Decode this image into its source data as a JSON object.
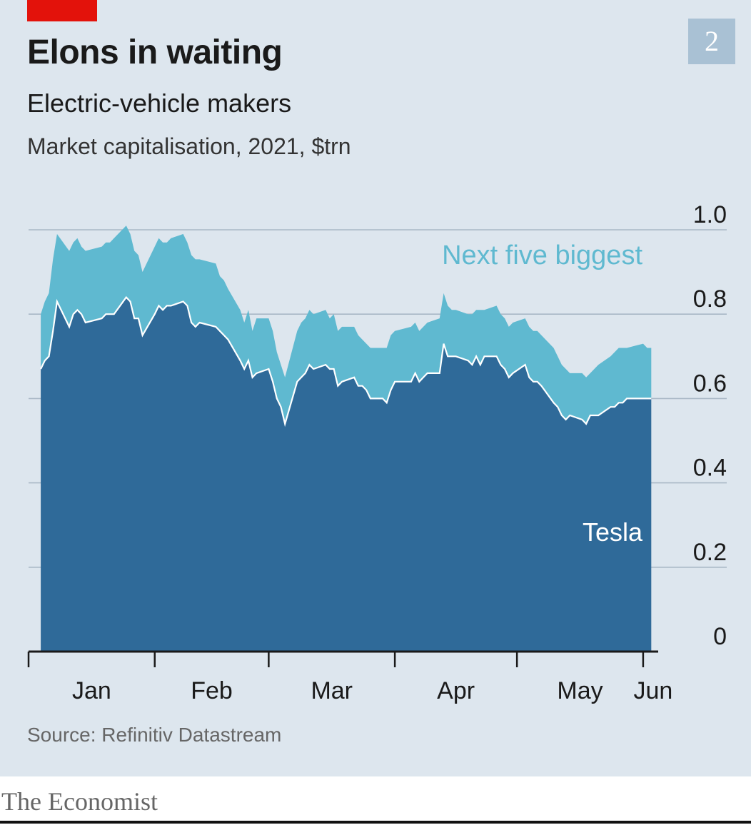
{
  "header": {
    "title": "Elons in waiting",
    "subtitle": "Electric-vehicle makers",
    "unit_note": "Market capitalisation, 2021, $trn",
    "chart_number": "2"
  },
  "footer": {
    "source": "Source: Refinitiv Datastream",
    "brand": "The Economist"
  },
  "colors": {
    "panel_bg": "#dde6ee",
    "tesla": "#2f6a99",
    "next_five": "#5fb9d0",
    "accent_red": "#e3120b"
  },
  "chart_data": {
    "type": "area",
    "stacked": true,
    "title": "Elons in waiting",
    "subtitle": "Electric-vehicle makers",
    "ylabel": "Market capitalisation, 2021, $trn",
    "ylim": [
      0,
      1.0
    ],
    "yticks": [
      "0",
      "0.2",
      "0.4",
      "0.6",
      "0.8",
      "1.0"
    ],
    "ytick_values": [
      0,
      0.2,
      0.4,
      0.6,
      0.8,
      1.0
    ],
    "xlim": [
      "2021-01-01",
      "2021-06-04"
    ],
    "xtick_labels": [
      "Jan",
      "Feb",
      "Mar",
      "Apr",
      "May",
      "Jun"
    ],
    "xtick_dates": [
      "2021-01-01",
      "2021-02-01",
      "2021-03-01",
      "2021-04-01",
      "2021-05-01",
      "2021-06-01"
    ],
    "grid": true,
    "series": [
      {
        "name": "Tesla",
        "color": "#2f6a99",
        "points": [
          [
            "2021-01-04",
            0.67
          ],
          [
            "2021-01-05",
            0.69
          ],
          [
            "2021-01-06",
            0.7
          ],
          [
            "2021-01-07",
            0.76
          ],
          [
            "2021-01-08",
            0.83
          ],
          [
            "2021-01-11",
            0.77
          ],
          [
            "2021-01-12",
            0.8
          ],
          [
            "2021-01-13",
            0.81
          ],
          [
            "2021-01-14",
            0.8
          ],
          [
            "2021-01-15",
            0.78
          ],
          [
            "2021-01-19",
            0.79
          ],
          [
            "2021-01-20",
            0.8
          ],
          [
            "2021-01-21",
            0.8
          ],
          [
            "2021-01-22",
            0.8
          ],
          [
            "2021-01-25",
            0.84
          ],
          [
            "2021-01-26",
            0.83
          ],
          [
            "2021-01-27",
            0.79
          ],
          [
            "2021-01-28",
            0.79
          ],
          [
            "2021-01-29",
            0.75
          ],
          [
            "2021-02-01",
            0.8
          ],
          [
            "2021-02-02",
            0.82
          ],
          [
            "2021-02-03",
            0.81
          ],
          [
            "2021-02-04",
            0.82
          ],
          [
            "2021-02-05",
            0.82
          ],
          [
            "2021-02-08",
            0.83
          ],
          [
            "2021-02-09",
            0.82
          ],
          [
            "2021-02-10",
            0.78
          ],
          [
            "2021-02-11",
            0.77
          ],
          [
            "2021-02-12",
            0.78
          ],
          [
            "2021-02-16",
            0.77
          ],
          [
            "2021-02-17",
            0.76
          ],
          [
            "2021-02-18",
            0.75
          ],
          [
            "2021-02-19",
            0.74
          ],
          [
            "2021-02-22",
            0.69
          ],
          [
            "2021-02-23",
            0.67
          ],
          [
            "2021-02-24",
            0.69
          ],
          [
            "2021-02-25",
            0.65
          ],
          [
            "2021-02-26",
            0.66
          ],
          [
            "2021-03-01",
            0.67
          ],
          [
            "2021-03-02",
            0.64
          ],
          [
            "2021-03-03",
            0.6
          ],
          [
            "2021-03-04",
            0.58
          ],
          [
            "2021-03-05",
            0.54
          ],
          [
            "2021-03-08",
            0.64
          ],
          [
            "2021-03-09",
            0.65
          ],
          [
            "2021-03-10",
            0.66
          ],
          [
            "2021-03-11",
            0.68
          ],
          [
            "2021-03-12",
            0.67
          ],
          [
            "2021-03-15",
            0.68
          ],
          [
            "2021-03-16",
            0.67
          ],
          [
            "2021-03-17",
            0.67
          ],
          [
            "2021-03-18",
            0.63
          ],
          [
            "2021-03-19",
            0.64
          ],
          [
            "2021-03-22",
            0.65
          ],
          [
            "2021-03-23",
            0.63
          ],
          [
            "2021-03-24",
            0.63
          ],
          [
            "2021-03-25",
            0.62
          ],
          [
            "2021-03-26",
            0.6
          ],
          [
            "2021-03-29",
            0.6
          ],
          [
            "2021-03-30",
            0.59
          ],
          [
            "2021-03-31",
            0.62
          ],
          [
            "2021-04-01",
            0.64
          ],
          [
            "2021-04-05",
            0.64
          ],
          [
            "2021-04-06",
            0.66
          ],
          [
            "2021-04-07",
            0.64
          ],
          [
            "2021-04-08",
            0.65
          ],
          [
            "2021-04-09",
            0.66
          ],
          [
            "2021-04-12",
            0.66
          ],
          [
            "2021-04-13",
            0.73
          ],
          [
            "2021-04-14",
            0.7
          ],
          [
            "2021-04-15",
            0.7
          ],
          [
            "2021-04-16",
            0.7
          ],
          [
            "2021-04-19",
            0.69
          ],
          [
            "2021-04-20",
            0.68
          ],
          [
            "2021-04-21",
            0.7
          ],
          [
            "2021-04-22",
            0.68
          ],
          [
            "2021-04-23",
            0.7
          ],
          [
            "2021-04-26",
            0.7
          ],
          [
            "2021-04-27",
            0.68
          ],
          [
            "2021-04-28",
            0.67
          ],
          [
            "2021-04-29",
            0.65
          ],
          [
            "2021-04-30",
            0.66
          ],
          [
            "2021-05-03",
            0.68
          ],
          [
            "2021-05-04",
            0.65
          ],
          [
            "2021-05-05",
            0.64
          ],
          [
            "2021-05-06",
            0.64
          ],
          [
            "2021-05-07",
            0.63
          ],
          [
            "2021-05-10",
            0.59
          ],
          [
            "2021-05-11",
            0.58
          ],
          [
            "2021-05-12",
            0.56
          ],
          [
            "2021-05-13",
            0.55
          ],
          [
            "2021-05-14",
            0.56
          ],
          [
            "2021-05-17",
            0.55
          ],
          [
            "2021-05-18",
            0.54
          ],
          [
            "2021-05-19",
            0.56
          ],
          [
            "2021-05-20",
            0.56
          ],
          [
            "2021-05-21",
            0.56
          ],
          [
            "2021-05-24",
            0.58
          ],
          [
            "2021-05-25",
            0.58
          ],
          [
            "2021-05-26",
            0.59
          ],
          [
            "2021-05-27",
            0.59
          ],
          [
            "2021-05-28",
            0.6
          ],
          [
            "2021-06-01",
            0.6
          ],
          [
            "2021-06-02",
            0.6
          ],
          [
            "2021-06-03",
            0.6
          ]
        ]
      },
      {
        "name": "Next five biggest",
        "color": "#5fb9d0",
        "points": [
          [
            "2021-01-04",
            0.13
          ],
          [
            "2021-01-05",
            0.14
          ],
          [
            "2021-01-06",
            0.15
          ],
          [
            "2021-01-07",
            0.17
          ],
          [
            "2021-01-08",
            0.16
          ],
          [
            "2021-01-11",
            0.18
          ],
          [
            "2021-01-12",
            0.17
          ],
          [
            "2021-01-13",
            0.17
          ],
          [
            "2021-01-14",
            0.16
          ],
          [
            "2021-01-15",
            0.17
          ],
          [
            "2021-01-19",
            0.17
          ],
          [
            "2021-01-20",
            0.17
          ],
          [
            "2021-01-21",
            0.17
          ],
          [
            "2021-01-22",
            0.18
          ],
          [
            "2021-01-25",
            0.17
          ],
          [
            "2021-01-26",
            0.16
          ],
          [
            "2021-01-27",
            0.16
          ],
          [
            "2021-01-28",
            0.15
          ],
          [
            "2021-01-29",
            0.15
          ],
          [
            "2021-02-01",
            0.16
          ],
          [
            "2021-02-02",
            0.16
          ],
          [
            "2021-02-03",
            0.16
          ],
          [
            "2021-02-04",
            0.15
          ],
          [
            "2021-02-05",
            0.16
          ],
          [
            "2021-02-08",
            0.16
          ],
          [
            "2021-02-09",
            0.15
          ],
          [
            "2021-02-10",
            0.16
          ],
          [
            "2021-02-11",
            0.16
          ],
          [
            "2021-02-12",
            0.15
          ],
          [
            "2021-02-16",
            0.15
          ],
          [
            "2021-02-17",
            0.13
          ],
          [
            "2021-02-18",
            0.13
          ],
          [
            "2021-02-19",
            0.12
          ],
          [
            "2021-02-22",
            0.12
          ],
          [
            "2021-02-23",
            0.11
          ],
          [
            "2021-02-24",
            0.12
          ],
          [
            "2021-02-25",
            0.11
          ],
          [
            "2021-02-26",
            0.13
          ],
          [
            "2021-03-01",
            0.12
          ],
          [
            "2021-03-02",
            0.12
          ],
          [
            "2021-03-03",
            0.11
          ],
          [
            "2021-03-04",
            0.1
          ],
          [
            "2021-03-05",
            0.11
          ],
          [
            "2021-03-08",
            0.12
          ],
          [
            "2021-03-09",
            0.13
          ],
          [
            "2021-03-10",
            0.13
          ],
          [
            "2021-03-11",
            0.13
          ],
          [
            "2021-03-12",
            0.13
          ],
          [
            "2021-03-15",
            0.13
          ],
          [
            "2021-03-16",
            0.12
          ],
          [
            "2021-03-17",
            0.13
          ],
          [
            "2021-03-18",
            0.13
          ],
          [
            "2021-03-19",
            0.13
          ],
          [
            "2021-03-22",
            0.12
          ],
          [
            "2021-03-23",
            0.12
          ],
          [
            "2021-03-24",
            0.11
          ],
          [
            "2021-03-25",
            0.11
          ],
          [
            "2021-03-26",
            0.12
          ],
          [
            "2021-03-29",
            0.12
          ],
          [
            "2021-03-30",
            0.13
          ],
          [
            "2021-03-31",
            0.13
          ],
          [
            "2021-04-01",
            0.12
          ],
          [
            "2021-04-05",
            0.13
          ],
          [
            "2021-04-06",
            0.12
          ],
          [
            "2021-04-07",
            0.12
          ],
          [
            "2021-04-08",
            0.12
          ],
          [
            "2021-04-09",
            0.12
          ],
          [
            "2021-04-12",
            0.13
          ],
          [
            "2021-04-13",
            0.12
          ],
          [
            "2021-04-14",
            0.12
          ],
          [
            "2021-04-15",
            0.11
          ],
          [
            "2021-04-16",
            0.11
          ],
          [
            "2021-04-19",
            0.11
          ],
          [
            "2021-04-20",
            0.12
          ],
          [
            "2021-04-21",
            0.11
          ],
          [
            "2021-04-22",
            0.13
          ],
          [
            "2021-04-23",
            0.11
          ],
          [
            "2021-04-26",
            0.12
          ],
          [
            "2021-04-27",
            0.12
          ],
          [
            "2021-04-28",
            0.12
          ],
          [
            "2021-04-29",
            0.12
          ],
          [
            "2021-04-30",
            0.12
          ],
          [
            "2021-05-03",
            0.11
          ],
          [
            "2021-05-04",
            0.12
          ],
          [
            "2021-05-05",
            0.12
          ],
          [
            "2021-05-06",
            0.12
          ],
          [
            "2021-05-07",
            0.12
          ],
          [
            "2021-05-10",
            0.13
          ],
          [
            "2021-05-11",
            0.12
          ],
          [
            "2021-05-12",
            0.12
          ],
          [
            "2021-05-13",
            0.12
          ],
          [
            "2021-05-14",
            0.1
          ],
          [
            "2021-05-17",
            0.11
          ],
          [
            "2021-05-18",
            0.11
          ],
          [
            "2021-05-19",
            0.1
          ],
          [
            "2021-05-20",
            0.11
          ],
          [
            "2021-05-21",
            0.12
          ],
          [
            "2021-05-24",
            0.12
          ],
          [
            "2021-05-25",
            0.13
          ],
          [
            "2021-05-26",
            0.13
          ],
          [
            "2021-05-27",
            0.13
          ],
          [
            "2021-05-28",
            0.12
          ],
          [
            "2021-06-01",
            0.13
          ],
          [
            "2021-06-02",
            0.12
          ],
          [
            "2021-06-03",
            0.12
          ]
        ]
      }
    ],
    "annotations": {
      "tesla_label": "Tesla",
      "next_five_label": "Next five biggest"
    }
  }
}
